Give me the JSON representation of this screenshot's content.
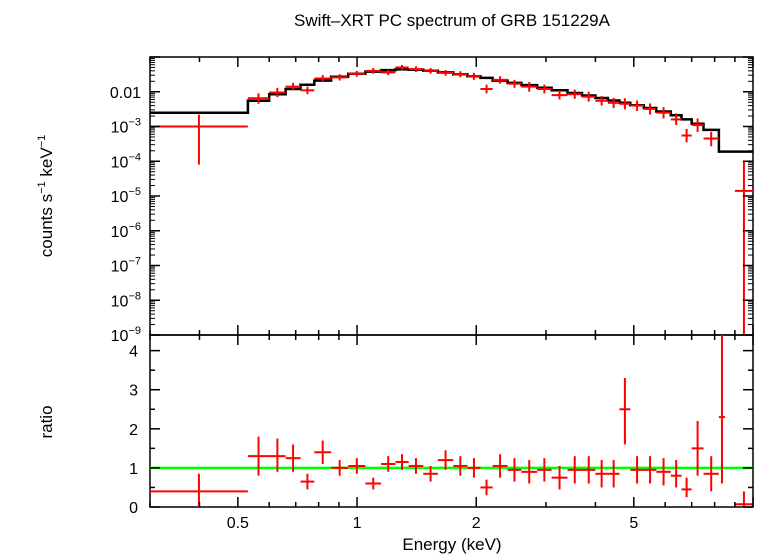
{
  "chart_data": [
    {
      "type": "scatter",
      "panel": "spectrum",
      "title": "Swift–XRT PC spectrum of GRB 151229A",
      "ylabel_main": "counts s",
      "ylabel_exp1": "−1",
      "ylabel_mid": " keV",
      "ylabel_exp2": "−1",
      "x_scale": "log",
      "y_scale": "log",
      "xlim": [
        0.3,
        10
      ],
      "ylim": [
        1e-09,
        0.1
      ],
      "yticks": [
        {
          "v": 0.01,
          "base": "0.01",
          "exp": ""
        },
        {
          "v": 0.001,
          "base": "10",
          "exp": "−3"
        },
        {
          "v": 0.0001,
          "base": "10",
          "exp": "−4"
        },
        {
          "v": 1e-05,
          "base": "10",
          "exp": "−5"
        },
        {
          "v": 1e-06,
          "base": "10",
          "exp": "−6"
        },
        {
          "v": 1e-07,
          "base": "10",
          "exp": "−7"
        },
        {
          "v": 1e-08,
          "base": "10",
          "exp": "−8"
        },
        {
          "v": 1e-09,
          "base": "10",
          "exp": "−9"
        }
      ],
      "data_color": "#ff0000",
      "model_color": "#000000",
      "series": [
        {
          "name": "data",
          "points": [
            {
              "x0": 0.3,
              "x1": 0.53,
              "y": 0.001,
              "ylo": 8e-05,
              "yhi": 0.0022
            },
            {
              "x0": 0.53,
              "x1": 0.6,
              "y": 0.0065,
              "ylo": 0.0045,
              "yhi": 0.009
            },
            {
              "x0": 0.6,
              "x1": 0.66,
              "y": 0.0095,
              "ylo": 0.007,
              "yhi": 0.013
            },
            {
              "x0": 0.66,
              "x1": 0.72,
              "y": 0.014,
              "ylo": 0.011,
              "yhi": 0.018
            },
            {
              "x0": 0.72,
              "x1": 0.78,
              "y": 0.011,
              "ylo": 0.0085,
              "yhi": 0.014
            },
            {
              "x0": 0.78,
              "x1": 0.86,
              "y": 0.024,
              "ylo": 0.019,
              "yhi": 0.03
            },
            {
              "x0": 0.86,
              "x1": 0.95,
              "y": 0.026,
              "ylo": 0.021,
              "yhi": 0.032
            },
            {
              "x0": 0.95,
              "x1": 1.05,
              "y": 0.033,
              "ylo": 0.027,
              "yhi": 0.04
            },
            {
              "x0": 1.05,
              "x1": 1.15,
              "y": 0.04,
              "ylo": 0.033,
              "yhi": 0.048
            },
            {
              "x0": 1.15,
              "x1": 1.25,
              "y": 0.036,
              "ylo": 0.03,
              "yhi": 0.043
            },
            {
              "x0": 1.25,
              "x1": 1.35,
              "y": 0.05,
              "ylo": 0.042,
              "yhi": 0.059
            },
            {
              "x0": 1.35,
              "x1": 1.47,
              "y": 0.045,
              "ylo": 0.037,
              "yhi": 0.054
            },
            {
              "x0": 1.47,
              "x1": 1.6,
              "y": 0.04,
              "ylo": 0.033,
              "yhi": 0.048
            },
            {
              "x0": 1.6,
              "x1": 1.75,
              "y": 0.035,
              "ylo": 0.029,
              "yhi": 0.042
            },
            {
              "x0": 1.75,
              "x1": 1.9,
              "y": 0.032,
              "ylo": 0.026,
              "yhi": 0.039
            },
            {
              "x0": 1.9,
              "x1": 2.05,
              "y": 0.028,
              "ylo": 0.022,
              "yhi": 0.035
            },
            {
              "x0": 2.05,
              "x1": 2.2,
              "y": 0.012,
              "ylo": 0.009,
              "yhi": 0.016
            },
            {
              "x0": 2.2,
              "x1": 2.4,
              "y": 0.022,
              "ylo": 0.017,
              "yhi": 0.028
            },
            {
              "x0": 2.4,
              "x1": 2.6,
              "y": 0.017,
              "ylo": 0.013,
              "yhi": 0.022
            },
            {
              "x0": 2.6,
              "x1": 2.85,
              "y": 0.014,
              "ylo": 0.01,
              "yhi": 0.019
            },
            {
              "x0": 2.85,
              "x1": 3.1,
              "y": 0.012,
              "ylo": 0.009,
              "yhi": 0.016
            },
            {
              "x0": 3.1,
              "x1": 3.4,
              "y": 0.008,
              "ylo": 0.006,
              "yhi": 0.011
            },
            {
              "x0": 3.4,
              "x1": 3.7,
              "y": 0.0085,
              "ylo": 0.0063,
              "yhi": 0.0115
            },
            {
              "x0": 3.7,
              "x1": 4.0,
              "y": 0.0072,
              "ylo": 0.0052,
              "yhi": 0.01
            },
            {
              "x0": 4.0,
              "x1": 4.3,
              "y": 0.0055,
              "ylo": 0.004,
              "yhi": 0.0075
            },
            {
              "x0": 4.3,
              "x1": 4.6,
              "y": 0.0048,
              "ylo": 0.0034,
              "yhi": 0.0067
            },
            {
              "x0": 4.6,
              "x1": 4.9,
              "y": 0.0045,
              "ylo": 0.0031,
              "yhi": 0.0065
            },
            {
              "x0": 4.9,
              "x1": 5.3,
              "y": 0.004,
              "ylo": 0.0028,
              "yhi": 0.0056
            },
            {
              "x0": 5.3,
              "x1": 5.7,
              "y": 0.0032,
              "ylo": 0.0022,
              "yhi": 0.0046
            },
            {
              "x0": 5.7,
              "x1": 6.2,
              "y": 0.0025,
              "ylo": 0.0017,
              "yhi": 0.0036
            },
            {
              "x0": 6.2,
              "x1": 6.6,
              "y": 0.0016,
              "ylo": 0.0011,
              "yhi": 0.0024
            },
            {
              "x0": 6.6,
              "x1": 7.0,
              "y": 0.00055,
              "ylo": 0.00035,
              "yhi": 0.00085
            },
            {
              "x0": 7.0,
              "x1": 7.5,
              "y": 0.0011,
              "ylo": 0.0007,
              "yhi": 0.0017
            },
            {
              "x0": 7.5,
              "x1": 8.2,
              "y": 0.00045,
              "ylo": 0.00027,
              "yhi": 0.0007
            },
            {
              "x0": 9.0,
              "x1": 10.0,
              "y": 1.4e-05,
              "ylo": 1e-09,
              "yhi": 0.0001
            }
          ]
        },
        {
          "name": "model",
          "steps": [
            [
              0.3,
              0.0025
            ],
            [
              0.53,
              0.0025
            ],
            [
              0.53,
              0.0055
            ],
            [
              0.6,
              0.0055
            ],
            [
              0.6,
              0.0085
            ],
            [
              0.66,
              0.0085
            ],
            [
              0.66,
              0.012
            ],
            [
              0.72,
              0.012
            ],
            [
              0.72,
              0.016
            ],
            [
              0.78,
              0.016
            ],
            [
              0.78,
              0.021
            ],
            [
              0.86,
              0.021
            ],
            [
              0.86,
              0.027
            ],
            [
              0.95,
              0.027
            ],
            [
              0.95,
              0.033
            ],
            [
              1.05,
              0.033
            ],
            [
              1.05,
              0.038
            ],
            [
              1.15,
              0.038
            ],
            [
              1.15,
              0.042
            ],
            [
              1.25,
              0.042
            ],
            [
              1.25,
              0.044
            ],
            [
              1.35,
              0.044
            ],
            [
              1.35,
              0.043
            ],
            [
              1.47,
              0.043
            ],
            [
              1.47,
              0.04
            ],
            [
              1.6,
              0.04
            ],
            [
              1.6,
              0.036
            ],
            [
              1.75,
              0.036
            ],
            [
              1.75,
              0.032
            ],
            [
              1.9,
              0.032
            ],
            [
              1.9,
              0.028
            ],
            [
              2.05,
              0.028
            ],
            [
              2.05,
              0.025
            ],
            [
              2.2,
              0.025
            ],
            [
              2.2,
              0.021
            ],
            [
              2.4,
              0.021
            ],
            [
              2.4,
              0.018
            ],
            [
              2.6,
              0.018
            ],
            [
              2.6,
              0.0155
            ],
            [
              2.85,
              0.0155
            ],
            [
              2.85,
              0.013
            ],
            [
              3.1,
              0.013
            ],
            [
              3.1,
              0.011
            ],
            [
              3.4,
              0.011
            ],
            [
              3.4,
              0.0092
            ],
            [
              3.7,
              0.0092
            ],
            [
              3.7,
              0.0078
            ],
            [
              4.0,
              0.0078
            ],
            [
              4.0,
              0.0066
            ],
            [
              4.3,
              0.0066
            ],
            [
              4.3,
              0.0056
            ],
            [
              4.6,
              0.0056
            ],
            [
              4.6,
              0.0048
            ],
            [
              4.9,
              0.0048
            ],
            [
              4.9,
              0.0041
            ],
            [
              5.3,
              0.0041
            ],
            [
              5.3,
              0.0034
            ],
            [
              5.7,
              0.0034
            ],
            [
              5.7,
              0.0027
            ],
            [
              6.2,
              0.0027
            ],
            [
              6.2,
              0.0021
            ],
            [
              6.6,
              0.0021
            ],
            [
              6.6,
              0.0016
            ],
            [
              7.0,
              0.0016
            ],
            [
              7.0,
              0.0012
            ],
            [
              7.5,
              0.0012
            ],
            [
              7.5,
              0.0008
            ],
            [
              8.2,
              0.0008
            ],
            [
              8.2,
              0.00019
            ],
            [
              10.0,
              0.00019
            ]
          ]
        }
      ]
    },
    {
      "type": "scatter",
      "panel": "ratio",
      "xlabel": "Energy (keV)",
      "ylabel": "ratio",
      "x_scale": "log",
      "xlim": [
        0.3,
        10
      ],
      "ylim": [
        0,
        4.4
      ],
      "xticks": [
        {
          "v": 0.5,
          "label": "0.5"
        },
        {
          "v": 1,
          "label": "1"
        },
        {
          "v": 2,
          "label": "2"
        },
        {
          "v": 5,
          "label": "5"
        }
      ],
      "yticks": [
        {
          "v": 0,
          "label": "0"
        },
        {
          "v": 1,
          "label": "1"
        },
        {
          "v": 2,
          "label": "2"
        },
        {
          "v": 3,
          "label": "3"
        },
        {
          "v": 4,
          "label": "4"
        }
      ],
      "reference_line": {
        "y": 1,
        "color": "#00ff00"
      },
      "data_color": "#ff0000",
      "series": [
        {
          "name": "ratio",
          "points": [
            {
              "x0": 0.3,
              "x1": 0.53,
              "y": 0.4,
              "ylo": 0.0,
              "yhi": 0.85
            },
            {
              "x0": 0.53,
              "x1": 0.6,
              "y": 1.3,
              "ylo": 0.8,
              "yhi": 1.8
            },
            {
              "x0": 0.6,
              "x1": 0.66,
              "y": 1.3,
              "ylo": 0.9,
              "yhi": 1.75
            },
            {
              "x0": 0.66,
              "x1": 0.72,
              "y": 1.25,
              "ylo": 0.9,
              "yhi": 1.6
            },
            {
              "x0": 0.72,
              "x1": 0.78,
              "y": 0.65,
              "ylo": 0.45,
              "yhi": 0.85
            },
            {
              "x0": 0.78,
              "x1": 0.86,
              "y": 1.4,
              "ylo": 1.1,
              "yhi": 1.7
            },
            {
              "x0": 0.86,
              "x1": 0.95,
              "y": 1.0,
              "ylo": 0.8,
              "yhi": 1.2
            },
            {
              "x0": 0.95,
              "x1": 1.05,
              "y": 1.05,
              "ylo": 0.85,
              "yhi": 1.25
            },
            {
              "x0": 1.05,
              "x1": 1.15,
              "y": 0.6,
              "ylo": 0.45,
              "yhi": 0.75
            },
            {
              "x0": 1.15,
              "x1": 1.25,
              "y": 1.1,
              "ylo": 0.9,
              "yhi": 1.3
            },
            {
              "x0": 1.25,
              "x1": 1.35,
              "y": 1.15,
              "ylo": 0.95,
              "yhi": 1.35
            },
            {
              "x0": 1.35,
              "x1": 1.47,
              "y": 1.05,
              "ylo": 0.85,
              "yhi": 1.25
            },
            {
              "x0": 1.47,
              "x1": 1.6,
              "y": 0.85,
              "ylo": 0.65,
              "yhi": 1.05
            },
            {
              "x0": 1.6,
              "x1": 1.75,
              "y": 1.2,
              "ylo": 0.95,
              "yhi": 1.45
            },
            {
              "x0": 1.75,
              "x1": 1.9,
              "y": 1.05,
              "ylo": 0.8,
              "yhi": 1.3
            },
            {
              "x0": 1.9,
              "x1": 2.05,
              "y": 1.0,
              "ylo": 0.75,
              "yhi": 1.25
            },
            {
              "x0": 2.05,
              "x1": 2.2,
              "y": 0.5,
              "ylo": 0.3,
              "yhi": 0.7
            },
            {
              "x0": 2.2,
              "x1": 2.4,
              "y": 1.05,
              "ylo": 0.75,
              "yhi": 1.35
            },
            {
              "x0": 2.4,
              "x1": 2.6,
              "y": 0.95,
              "ylo": 0.65,
              "yhi": 1.25
            },
            {
              "x0": 2.6,
              "x1": 2.85,
              "y": 0.9,
              "ylo": 0.6,
              "yhi": 1.2
            },
            {
              "x0": 2.85,
              "x1": 3.1,
              "y": 0.95,
              "ylo": 0.65,
              "yhi": 1.25
            },
            {
              "x0": 3.1,
              "x1": 3.4,
              "y": 0.75,
              "ylo": 0.45,
              "yhi": 1.05
            },
            {
              "x0": 3.4,
              "x1": 3.7,
              "y": 0.95,
              "ylo": 0.6,
              "yhi": 1.3
            },
            {
              "x0": 3.7,
              "x1": 4.0,
              "y": 0.95,
              "ylo": 0.6,
              "yhi": 1.3
            },
            {
              "x0": 4.0,
              "x1": 4.3,
              "y": 0.85,
              "ylo": 0.5,
              "yhi": 1.2
            },
            {
              "x0": 4.3,
              "x1": 4.6,
              "y": 0.85,
              "ylo": 0.5,
              "yhi": 1.2
            },
            {
              "x0": 4.6,
              "x1": 4.9,
              "y": 2.5,
              "ylo": 1.6,
              "yhi": 3.3
            },
            {
              "x0": 4.9,
              "x1": 5.3,
              "y": 0.95,
              "ylo": 0.6,
              "yhi": 1.3
            },
            {
              "x0": 5.3,
              "x1": 5.7,
              "y": 0.95,
              "ylo": 0.6,
              "yhi": 1.3
            },
            {
              "x0": 5.7,
              "x1": 6.2,
              "y": 0.9,
              "ylo": 0.55,
              "yhi": 1.25
            },
            {
              "x0": 6.2,
              "x1": 6.6,
              "y": 0.8,
              "ylo": 0.5,
              "yhi": 1.2
            },
            {
              "x0": 6.6,
              "x1": 7.0,
              "y": 0.45,
              "ylo": 0.25,
              "yhi": 0.75
            },
            {
              "x0": 7.0,
              "x1": 7.5,
              "y": 1.5,
              "ylo": 0.8,
              "yhi": 2.2
            },
            {
              "x0": 7.5,
              "x1": 8.2,
              "y": 0.85,
              "ylo": 0.4,
              "yhi": 1.3
            },
            {
              "x0": 8.2,
              "x1": 8.5,
              "y": 2.3,
              "ylo": 0.6,
              "yhi": 4.4
            },
            {
              "x0": 9.0,
              "x1": 10.0,
              "y": 0.07,
              "ylo": 0.0,
              "yhi": 0.4
            }
          ]
        }
      ]
    }
  ]
}
